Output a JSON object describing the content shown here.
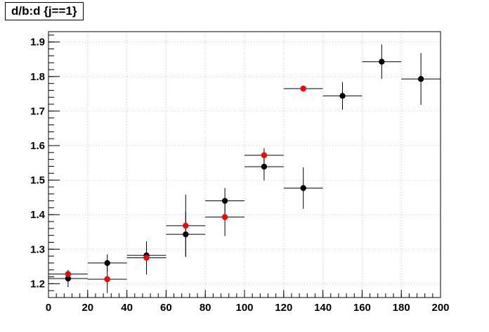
{
  "chart_data": {
    "type": "scatter",
    "title": "d/b:d {j==1}",
    "xlabel": "",
    "ylabel": "",
    "xlim": [
      0,
      200
    ],
    "ylim": [
      1.16,
      1.93
    ],
    "xticks": [
      0,
      20,
      40,
      60,
      80,
      100,
      120,
      140,
      160,
      180,
      200
    ],
    "yticks": [
      1.2,
      1.3,
      1.4,
      1.5,
      1.6,
      1.7,
      1.8,
      1.9
    ],
    "grid": true,
    "series": [
      {
        "color": "#000000",
        "points": [
          {
            "x": 10,
            "y": 1.215,
            "xerr": 10,
            "yerr": 0.025
          },
          {
            "x": 30,
            "y": 1.26,
            "xerr": 10,
            "yerr": 0.025
          },
          {
            "x": 50,
            "y": 1.282,
            "xerr": 10,
            "yerr": 0.035
          },
          {
            "x": 70,
            "y": 1.343,
            "xerr": 10,
            "yerr": 0.065
          },
          {
            "x": 90,
            "y": 1.44,
            "xerr": 10,
            "yerr": 0.037
          },
          {
            "x": 110,
            "y": 1.539,
            "xerr": 10,
            "yerr": 0.04
          },
          {
            "x": 130,
            "y": 1.477,
            "xerr": 10,
            "yerr": 0.06
          },
          {
            "x": 150,
            "y": 1.744,
            "xerr": 10,
            "yerr": 0.04
          },
          {
            "x": 170,
            "y": 1.843,
            "xerr": 10,
            "yerr": 0.05
          },
          {
            "x": 190,
            "y": 1.793,
            "xerr": 10,
            "yerr": 0.075
          }
        ]
      },
      {
        "color": "#ff0000",
        "points": [
          {
            "x": 10,
            "y": 1.228,
            "xerr": 10,
            "yerr": 0.01
          },
          {
            "x": 30,
            "y": 1.213,
            "xerr": 10,
            "yerr": 0.04
          },
          {
            "x": 50,
            "y": 1.275,
            "xerr": 10,
            "yerr": 0.048
          },
          {
            "x": 70,
            "y": 1.368,
            "xerr": 10,
            "yerr": 0.09
          },
          {
            "x": 90,
            "y": 1.393,
            "xerr": 10,
            "yerr": 0.055
          },
          {
            "x": 110,
            "y": 1.572,
            "xerr": 10,
            "yerr": 0.02
          },
          {
            "x": 130,
            "y": 1.765,
            "xerr": 10,
            "yerr": 0.0
          }
        ]
      }
    ]
  }
}
